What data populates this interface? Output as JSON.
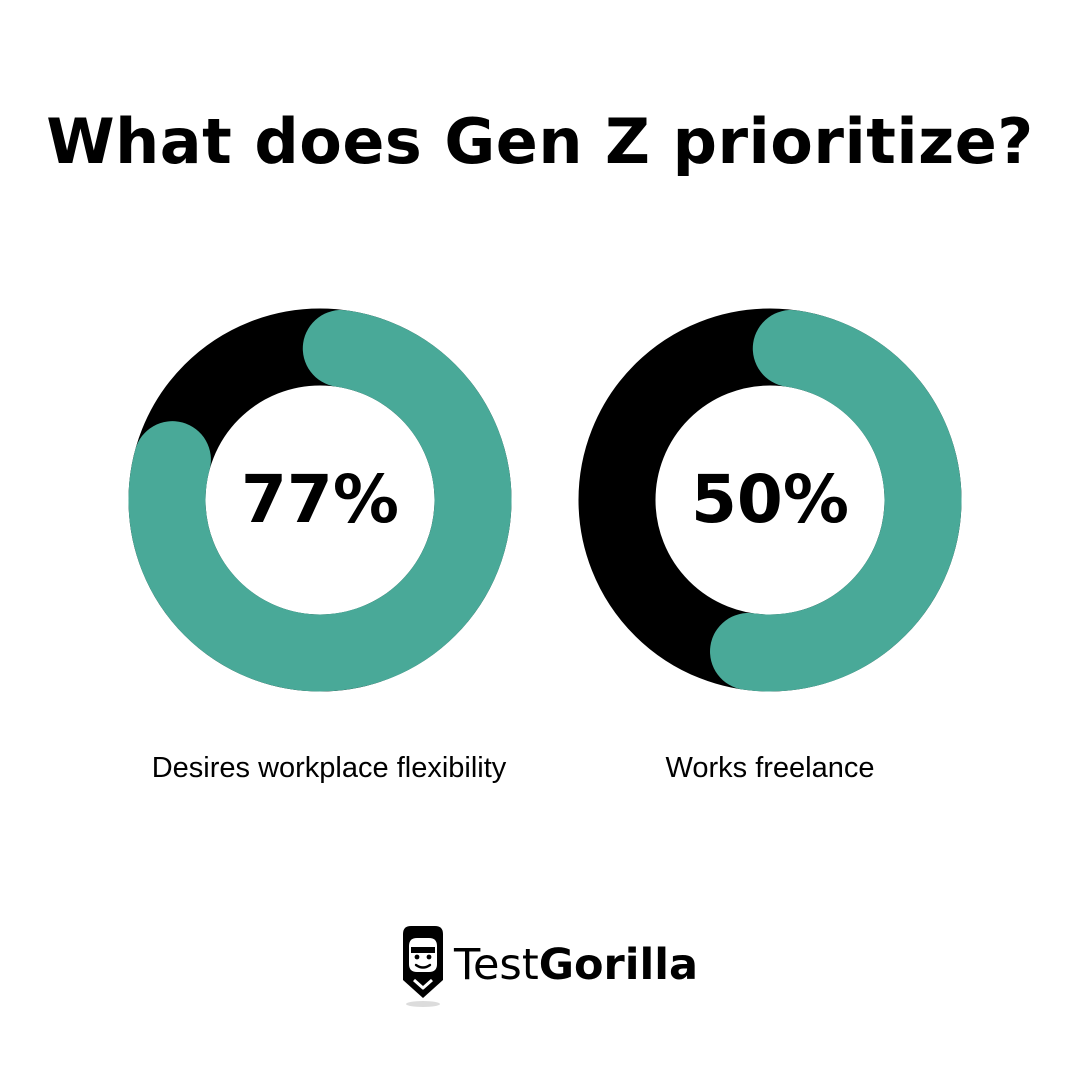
{
  "title": "What does Gen Z prioritize?",
  "colors": {
    "accent": "#49a998",
    "track": "#000000",
    "background": "#ffffff",
    "text": "#000000"
  },
  "chart_data": [
    {
      "type": "donut",
      "values": [
        77
      ],
      "value_label": "77%",
      "caption": "Desires workplace flexibility"
    },
    {
      "type": "donut",
      "values": [
        50
      ],
      "value_label": "50%",
      "caption": "Works freelance"
    }
  ],
  "brand": {
    "name_light": "Test",
    "name_bold": "Gorilla",
    "icon": "gorilla-logo-icon"
  }
}
